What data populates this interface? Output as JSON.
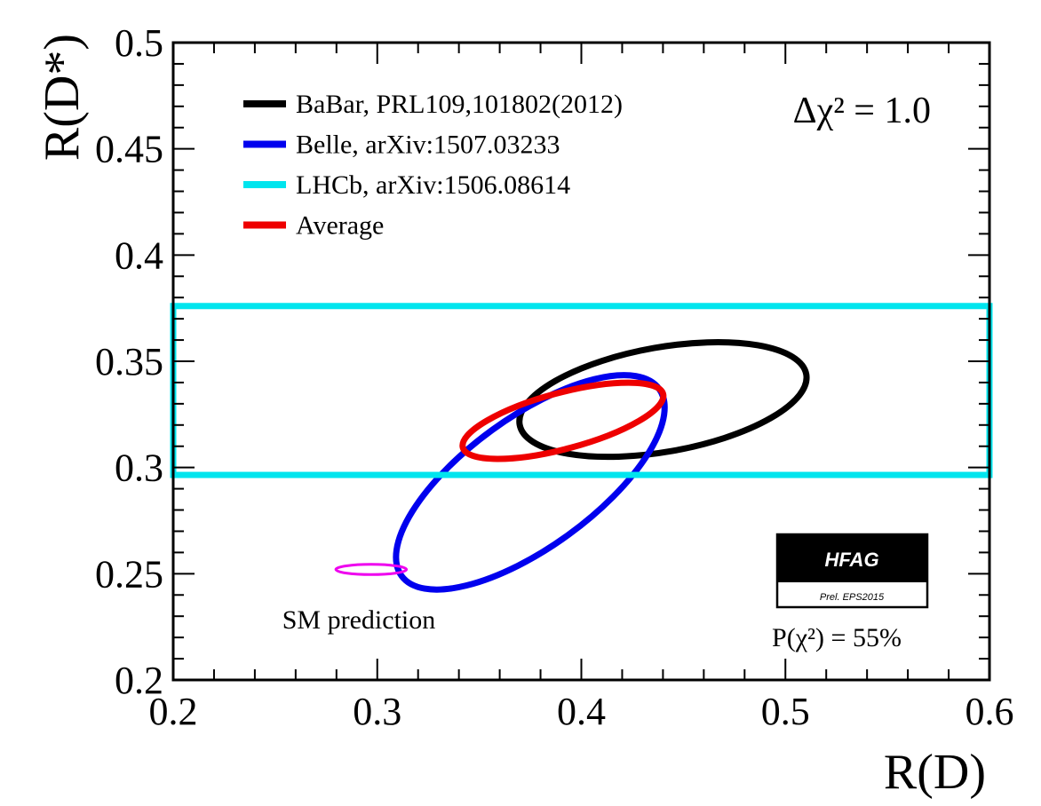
{
  "chart_data": {
    "type": "scatter",
    "xlabel": "R(D)",
    "ylabel": "R(D*)",
    "xlim": [
      0.2,
      0.6
    ],
    "ylim": [
      0.2,
      0.5
    ],
    "x_ticks": [
      "0.2",
      "0.3",
      "0.4",
      "0.5",
      "0.6"
    ],
    "y_ticks": [
      "0.2",
      "0.25",
      "0.3",
      "0.35",
      "0.4",
      "0.45",
      "0.5"
    ],
    "annotation": "Δχ² = 1.0",
    "p_value_label": "P(χ²) = 55%",
    "sm_label": "SM prediction",
    "badge": {
      "title": "HFAG",
      "subtitle": "Prel. EPS2015"
    },
    "series": [
      {
        "name": "BaBar, PRL109,101802(2012)",
        "color": "#000000",
        "shape": "ellipse",
        "center": [
          0.44,
          0.332
        ],
        "rx": 0.0713,
        "ry": 0.0246,
        "angle_deg": -10
      },
      {
        "name": "Belle, arXiv:1507.03233",
        "color": "#0000ee",
        "shape": "ellipse",
        "center": [
          0.375,
          0.293
        ],
        "rx": 0.078,
        "ry": 0.0305,
        "angle_deg": -36
      },
      {
        "name": "LHCb, arXiv:1506.08614",
        "color": "#00e5ee",
        "shape": "band",
        "y_range": [
          0.2965,
          0.376
        ]
      },
      {
        "name": "Average",
        "color": "#ee0000",
        "shape": "ellipse",
        "center": [
          0.391,
          0.322
        ],
        "rx": 0.0508,
        "ry": 0.0132,
        "angle_deg": -15
      },
      {
        "name": "SM prediction",
        "color": "#ee00ee",
        "shape": "ellipse",
        "center": [
          0.297,
          0.252
        ],
        "rx": 0.0173,
        "ry": 0.0024,
        "angle_deg": 0
      }
    ],
    "legend": [
      {
        "label": "BaBar, PRL109,101802(2012)",
        "color": "#000000"
      },
      {
        "label": "Belle, arXiv:1507.03233",
        "color": "#0000ee"
      },
      {
        "label": "LHCb, arXiv:1506.08614",
        "color": "#00e5ee"
      },
      {
        "label": "Average",
        "color": "#ee0000"
      }
    ]
  }
}
